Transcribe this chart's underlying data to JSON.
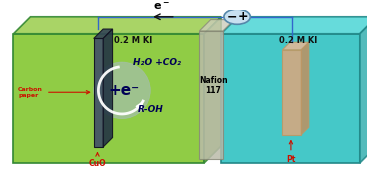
{
  "bg_color": "#ffffff",
  "left_cell_fill": "#90cc45",
  "left_cell_top_fill": "#a0d055",
  "left_cell_side_fill": "#78b038",
  "right_cell_fill": "#45c8c8",
  "right_cell_top_fill": "#55d8d8",
  "right_cell_side_fill": "#35b0b0",
  "cell_edge_color": "#338833",
  "cell_edge_color2": "#228888",
  "left_label": "0.2 M KI",
  "right_label": "0.2 M KI",
  "nafion_label": "Nafion\n117",
  "electrode_text1": "H₂O +CO₂",
  "electrode_text2": "+e⁻",
  "electrode_text3": "R-OH",
  "carbon_label": "Carbon\npaper",
  "cuo_label": "CuO",
  "pt_label": "Pt",
  "electron_label": "e⁻",
  "wire_color": "#3366cc",
  "nafion_color": "#bbbbaa",
  "nafion_edge": "#888877",
  "pt_color": "#d4a880",
  "pt_edge": "#bb9966",
  "text_color_dark": "#111111",
  "text_color_red": "#cc1100",
  "text_color_blue": "#000055",
  "battery_fill": "#c8e0f0",
  "battery_edge": "#5588aa",
  "cp_front": "#445566",
  "cp_side": "#223344",
  "cp_top": "#334455",
  "swirl_color": "#aabbcc",
  "swirl_arc": "#ffffff"
}
